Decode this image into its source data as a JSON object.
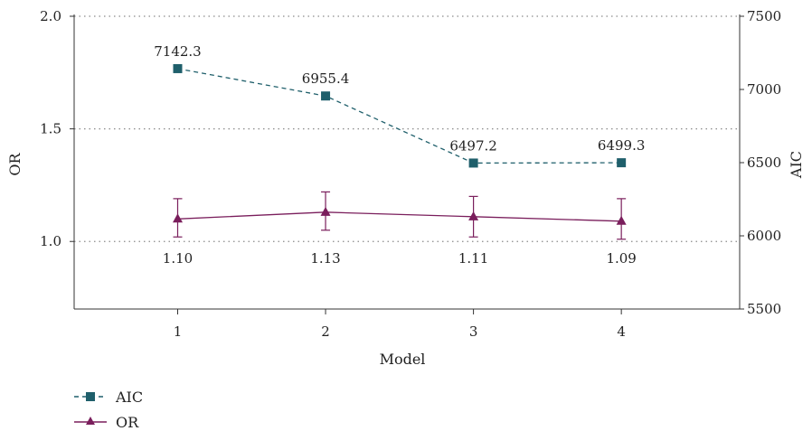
{
  "chart_data": {
    "type": "line",
    "x": [
      1,
      2,
      3,
      4
    ],
    "xlabel": "Model",
    "xlim": [
      0.3,
      4.8
    ],
    "y_left": {
      "label": "OR",
      "lim": [
        0.7,
        2.0
      ],
      "ticks": [
        1.0,
        1.5,
        2.0
      ],
      "tick_labels": [
        "1.0",
        "1.5",
        "2.0"
      ],
      "gridlines": [
        1.0,
        1.5,
        2.0
      ]
    },
    "y_right": {
      "label": "AIC",
      "lim": [
        5500,
        7500
      ],
      "ticks": [
        5500,
        6000,
        6500,
        7000,
        7500
      ],
      "tick_labels": [
        "5500",
        "6000",
        "6500",
        "7000",
        "7500"
      ]
    },
    "series": [
      {
        "name": "AIC",
        "axis": "right",
        "marker": "square",
        "line_style": "dashed",
        "color": "#1f5f6b",
        "values": [
          7142.3,
          6955.4,
          6497.2,
          6499.3
        ],
        "labels": [
          "7142.3",
          "6955.4",
          "6497.2",
          "6499.3"
        ]
      },
      {
        "name": "OR",
        "axis": "left",
        "marker": "triangle",
        "line_style": "solid",
        "color": "#7a1e5c",
        "values": [
          1.1,
          1.13,
          1.11,
          1.09
        ],
        "error_low": [
          1.02,
          1.05,
          1.02,
          1.01
        ],
        "error_high": [
          1.19,
          1.22,
          1.2,
          1.19
        ],
        "labels": [
          "1.10",
          "1.13",
          "1.11",
          "1.09"
        ]
      }
    ],
    "grid": "dotted horizontal at left-axis ticks",
    "legend_placement": "bottom-left"
  }
}
